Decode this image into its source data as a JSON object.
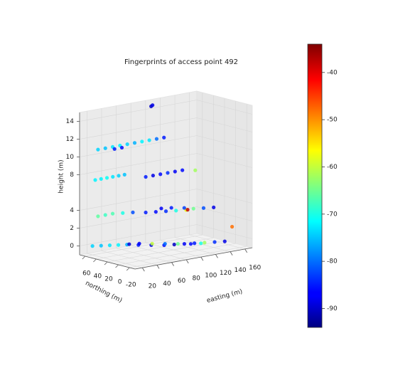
{
  "chart_data": {
    "type": "scatter3d",
    "title": "Fingerprints of access point 492",
    "xlabel": "easting (m)",
    "ylabel": "northing (m)",
    "zlabel": "height (m)",
    "xlim": [
      10,
      170
    ],
    "ylim": [
      -30,
      70
    ],
    "zlim": [
      -1,
      15
    ],
    "xticks": [
      20,
      40,
      60,
      80,
      100,
      120,
      140,
      160
    ],
    "yticks": [
      -20,
      0,
      20,
      40,
      60
    ],
    "zticks": [
      0,
      2,
      4,
      8,
      10,
      12,
      14
    ],
    "colormap": "jet",
    "clim": [
      -94,
      -34
    ],
    "cticks": [
      -90,
      -80,
      -70,
      -60,
      -50,
      -40
    ],
    "grid": true,
    "x": [
      100,
      102,
      20,
      30,
      40,
      50,
      60,
      70,
      80,
      90,
      100,
      110,
      35,
      45,
      20,
      28,
      36,
      44,
      52,
      60,
      70,
      80,
      90,
      100,
      110,
      120,
      130,
      20,
      30,
      40,
      50,
      60,
      70,
      80,
      90,
      100,
      110,
      120,
      130,
      140,
      95,
      105,
      115,
      112,
      150,
      20,
      28,
      36,
      44,
      52,
      60,
      70,
      80,
      90,
      100,
      110,
      120,
      130,
      140,
      75,
      85,
      95,
      105,
      65,
      55,
      115
    ],
    "y": [
      60,
      60,
      50,
      50,
      50,
      50,
      50,
      50,
      50,
      50,
      50,
      50,
      40,
      40,
      55,
      55,
      55,
      55,
      55,
      55,
      30,
      30,
      30,
      30,
      30,
      30,
      20,
      50,
      50,
      50,
      45,
      40,
      30,
      25,
      20,
      15,
      10,
      10,
      5,
      0,
      35,
      30,
      20,
      10,
      -20,
      60,
      55,
      50,
      45,
      40,
      30,
      20,
      10,
      5,
      0,
      -5,
      -10,
      -15,
      -20,
      25,
      15,
      5,
      -5,
      35,
      40,
      -10
    ],
    "z": [
      14.5,
      14.6,
      11,
      11,
      11,
      11,
      11,
      11,
      11,
      11,
      11,
      11,
      11,
      11,
      7.5,
      7.5,
      7.5,
      7.5,
      7.5,
      7.5,
      7.5,
      7.5,
      7.5,
      7.5,
      7.5,
      7.5,
      7.5,
      3.5,
      3.5,
      3.5,
      3.5,
      3.5,
      3.5,
      3.5,
      3.5,
      3.5,
      3.5,
      3.5,
      3.5,
      3.5,
      3.5,
      3.5,
      3.5,
      3.5,
      1.5,
      0,
      0,
      0,
      0,
      0,
      0,
      0,
      0,
      0,
      0,
      0,
      0,
      0,
      0,
      0,
      0,
      0,
      0,
      0,
      0,
      0
    ],
    "values": [
      -90,
      -88,
      -74,
      -75,
      -73,
      -72,
      -74,
      -76,
      -72,
      -73,
      -80,
      -85,
      -85,
      -86,
      -72,
      -72,
      -71,
      -73,
      -74,
      -75,
      -85,
      -88,
      -86,
      -84,
      -87,
      -86,
      -62,
      -66,
      -68,
      -67,
      -70,
      -82,
      -85,
      -86,
      -84,
      -70,
      -58,
      -65,
      -82,
      -88,
      -87,
      -85,
      -83,
      -38,
      -48,
      -74,
      -75,
      -73,
      -72,
      -76,
      -85,
      -88,
      -86,
      -90,
      -87,
      -85,
      -62,
      -84,
      -88,
      -60,
      -80,
      -65,
      -86,
      -87,
      -89,
      -70
    ]
  }
}
